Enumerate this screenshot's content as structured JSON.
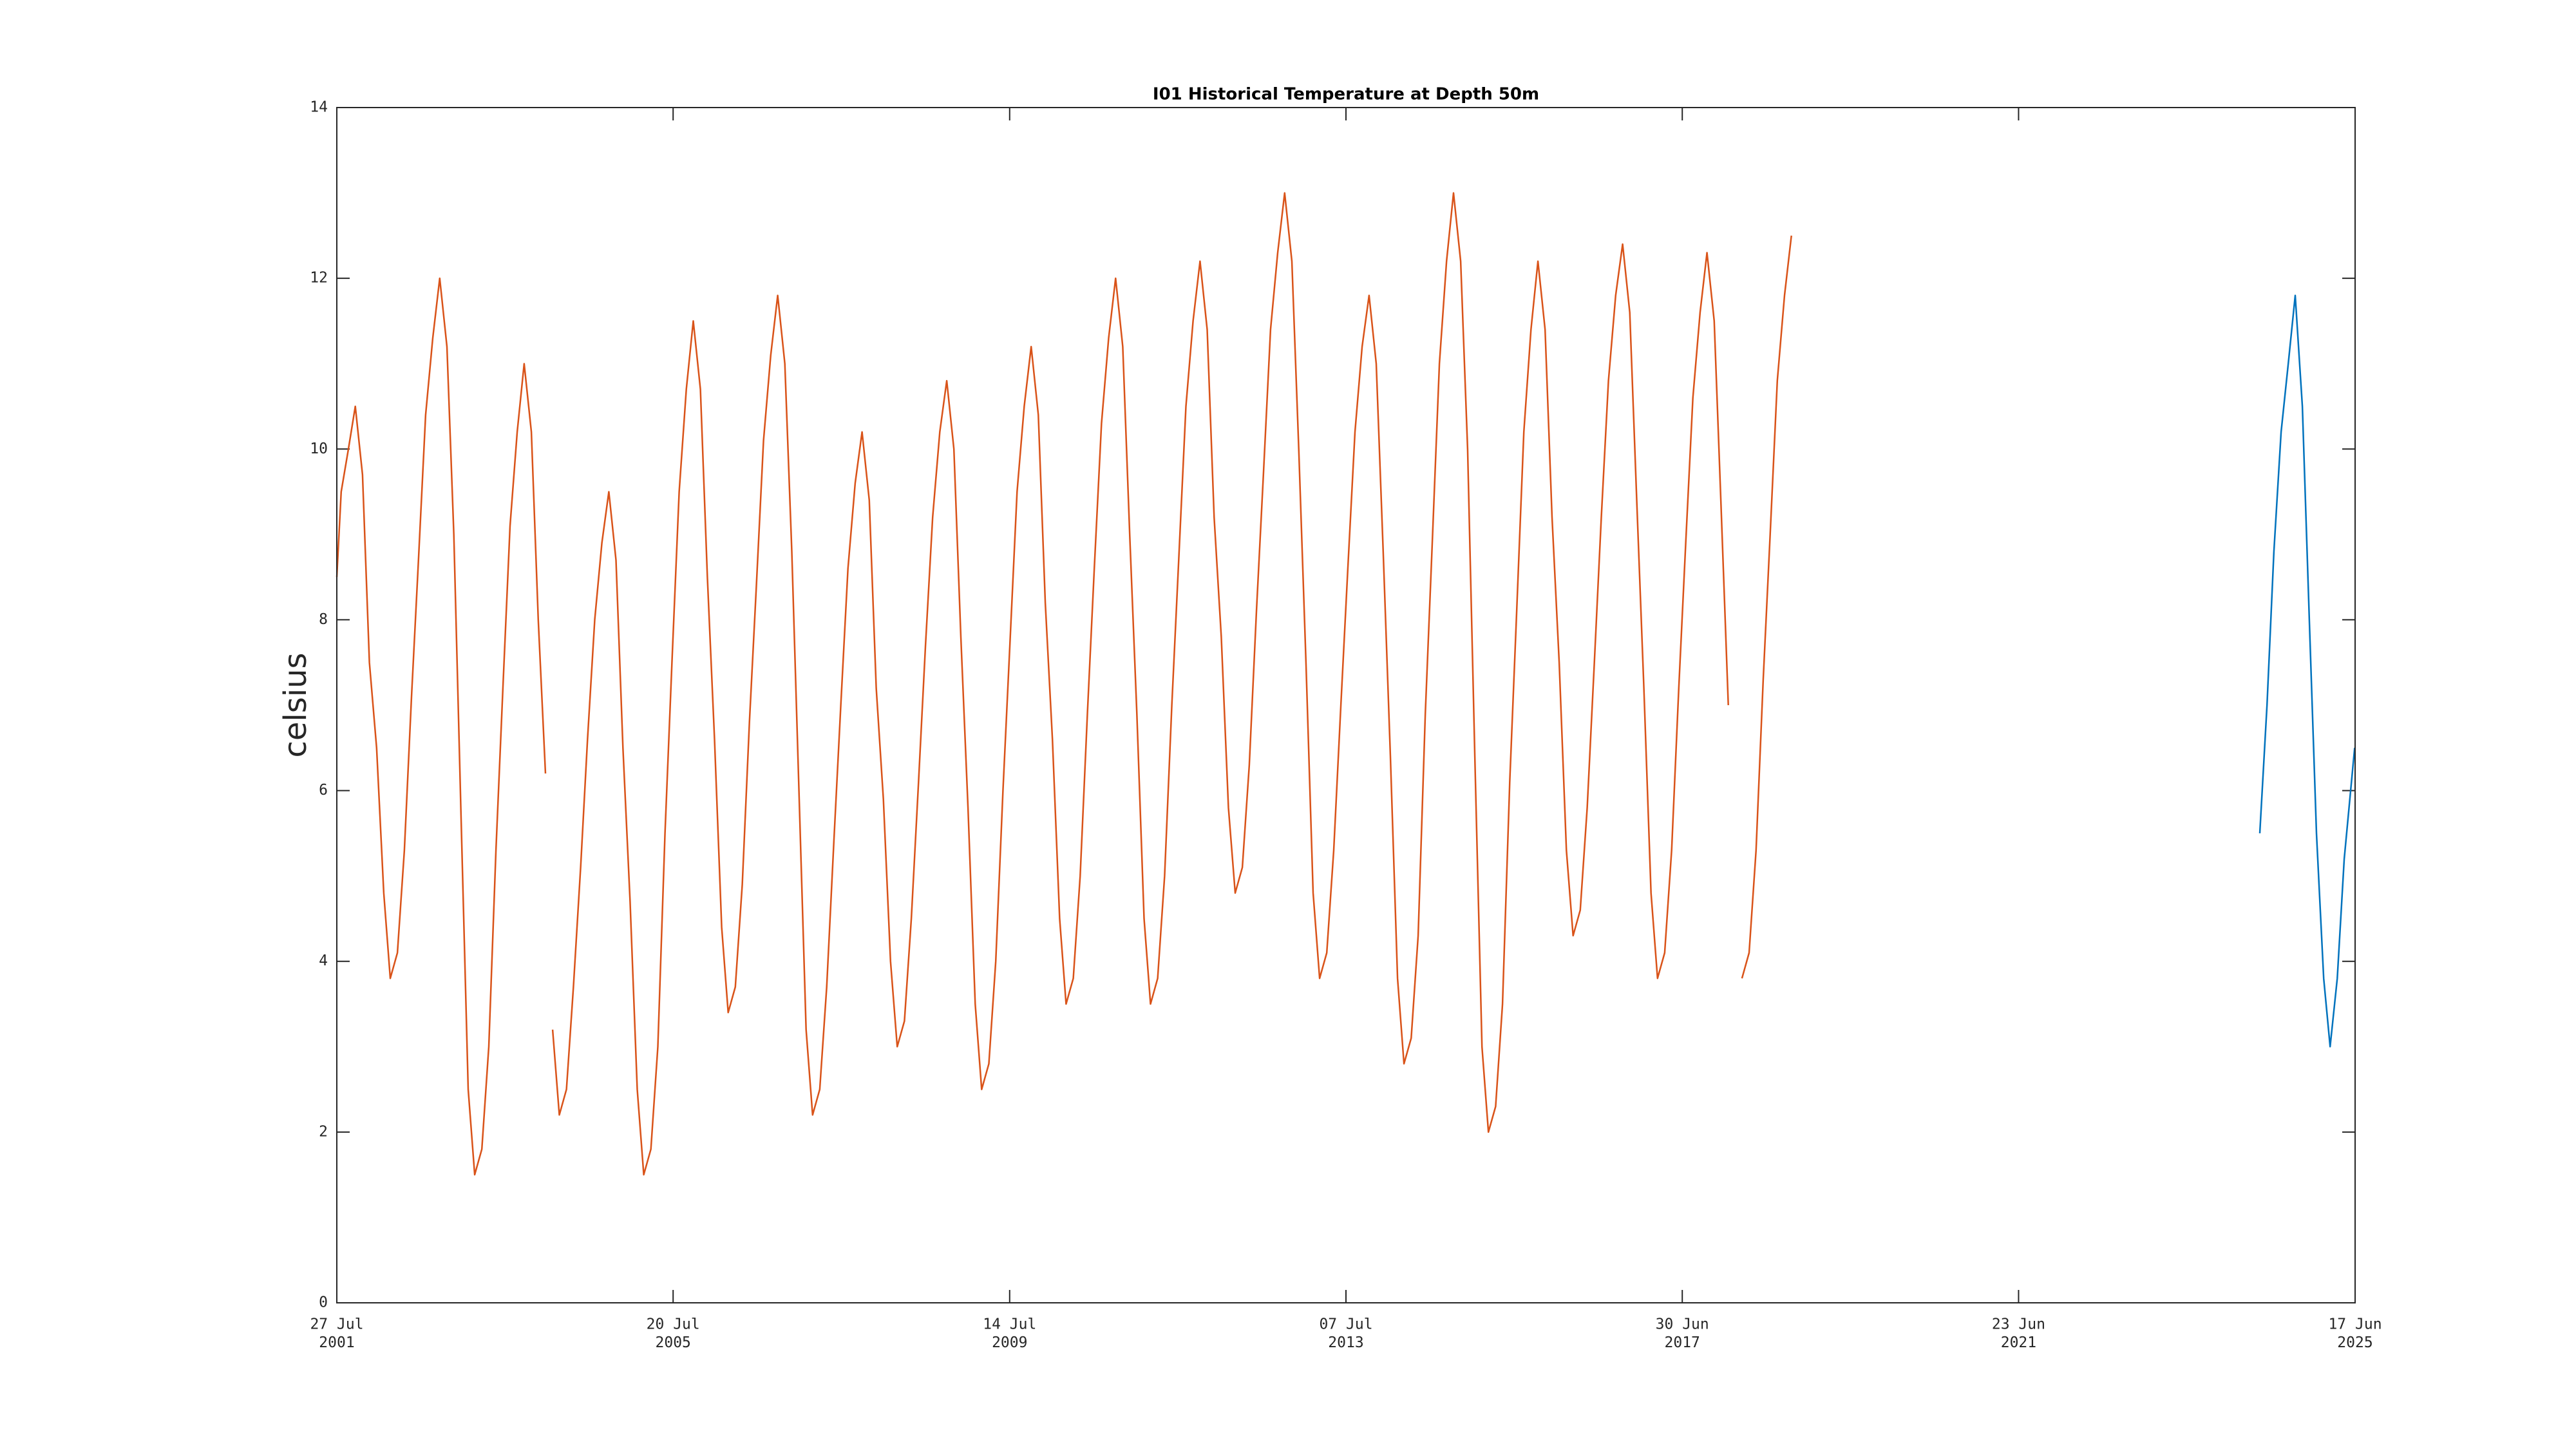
{
  "chart_data": {
    "type": "line",
    "title": "I01 Historical Temperature at Depth 50m",
    "y_label": "celsius",
    "xlim": [
      "2001-07-27",
      "2025-06-17"
    ],
    "xticks": [
      {
        "value": "2001-07-27",
        "label": "27 Jul\n2001"
      },
      {
        "value": "2005-07-20",
        "label": "20 Jul\n2005"
      },
      {
        "value": "2009-07-14",
        "label": "14 Jul\n2009"
      },
      {
        "value": "2013-07-07",
        "label": "07 Jul\n2013"
      },
      {
        "value": "2017-06-30",
        "label": "30 Jun\n2017"
      },
      {
        "value": "2021-06-23",
        "label": "23 Jun\n2021"
      },
      {
        "value": "2025-06-17",
        "label": "17 Jun\n2025"
      }
    ],
    "ylim": [
      0,
      14
    ],
    "yticks": [
      0,
      2,
      4,
      6,
      8,
      10,
      12,
      14
    ],
    "grid": false,
    "series": [
      {
        "color": "#d95319",
        "x": [
          "2001-07-27",
          "2001-08-15",
          "2001-09-15",
          "2001-10-15",
          "2001-11-15",
          "2001-12-15",
          "2002-01-15",
          "2002-02-15",
          "2002-03-15",
          "2002-04-15",
          "2002-05-15",
          "2002-06-15",
          "2002-07-15",
          "2002-08-15",
          "2002-09-15",
          "2002-10-15",
          "2002-11-15",
          "2002-12-15",
          "2003-01-15",
          "2003-02-15",
          "2003-03-15",
          "2003-04-15",
          "2003-05-15",
          "2003-06-15",
          "2003-07-15",
          "2003-08-15",
          "2003-09-15",
          "2003-10-15",
          "2003-11-15",
          "2003-12-15",
          "2004-01-15",
          "2004-02-01",
          "2004-02-15",
          "2004-03-15",
          "2004-04-15",
          "2004-05-15",
          "2004-06-15",
          "2004-07-15",
          "2004-08-15",
          "2004-09-15",
          "2004-10-15",
          "2004-11-15",
          "2004-12-15",
          "2005-01-15",
          "2005-02-15",
          "2005-03-15",
          "2005-04-15",
          "2005-05-15",
          "2005-06-15",
          "2005-07-15",
          "2005-08-15",
          "2005-09-15",
          "2005-10-15",
          "2005-11-15",
          "2005-12-15",
          "2006-01-15",
          "2006-02-15",
          "2006-03-15",
          "2006-04-15",
          "2006-05-15",
          "2006-06-15",
          "2006-07-15",
          "2006-08-15",
          "2006-09-15",
          "2006-10-15",
          "2006-11-15",
          "2006-12-15",
          "2007-01-15",
          "2007-02-15",
          "2007-03-15",
          "2007-04-15",
          "2007-05-15",
          "2007-06-15",
          "2007-07-15",
          "2007-08-15",
          "2007-09-15",
          "2007-10-15",
          "2007-11-15",
          "2007-12-15",
          "2008-01-15",
          "2008-02-15",
          "2008-03-15",
          "2008-04-15",
          "2008-05-15",
          "2008-06-15",
          "2008-07-15",
          "2008-08-15",
          "2008-09-15",
          "2008-10-15",
          "2008-11-15",
          "2008-12-15",
          "2009-01-15",
          "2009-02-15",
          "2009-03-15",
          "2009-04-15",
          "2009-05-15",
          "2009-06-15",
          "2009-07-15",
          "2009-08-15",
          "2009-09-15",
          "2009-10-15",
          "2009-11-15",
          "2009-12-15",
          "2010-01-15",
          "2010-02-15",
          "2010-03-15",
          "2010-04-15",
          "2010-05-15",
          "2010-06-15",
          "2010-07-15",
          "2010-08-15",
          "2010-09-15",
          "2010-10-15",
          "2010-11-15",
          "2010-12-15",
          "2011-01-15",
          "2011-02-15",
          "2011-03-15",
          "2011-04-15",
          "2011-05-15",
          "2011-06-15",
          "2011-07-15",
          "2011-08-15",
          "2011-09-15",
          "2011-10-15",
          "2011-11-15",
          "2011-12-15",
          "2012-01-15",
          "2012-02-15",
          "2012-03-15",
          "2012-04-15",
          "2012-05-15",
          "2012-06-15",
          "2012-07-15",
          "2012-08-15",
          "2012-09-15",
          "2012-10-15",
          "2012-11-15",
          "2012-12-15",
          "2013-01-15",
          "2013-02-15",
          "2013-03-15",
          "2013-04-15",
          "2013-05-15",
          "2013-06-15",
          "2013-07-15",
          "2013-08-15",
          "2013-09-15",
          "2013-10-15",
          "2013-11-15",
          "2013-12-15",
          "2014-01-15",
          "2014-02-15",
          "2014-03-15",
          "2014-04-15",
          "2014-05-15",
          "2014-06-15",
          "2014-07-15",
          "2014-08-15",
          "2014-09-15",
          "2014-10-15",
          "2014-11-15",
          "2014-12-15",
          "2015-01-15",
          "2015-02-15",
          "2015-03-15",
          "2015-04-15",
          "2015-05-15",
          "2015-06-15",
          "2015-07-15",
          "2015-08-15",
          "2015-09-15",
          "2015-10-15",
          "2015-11-15",
          "2015-12-15",
          "2016-01-15",
          "2016-02-15",
          "2016-03-15",
          "2016-04-15",
          "2016-05-15",
          "2016-06-15",
          "2016-07-15",
          "2016-08-15",
          "2016-09-15",
          "2016-10-15",
          "2016-11-15",
          "2016-12-15",
          "2017-01-15",
          "2017-02-15",
          "2017-03-15",
          "2017-04-15",
          "2017-05-15",
          "2017-06-15",
          "2017-07-15",
          "2017-08-15",
          "2017-09-15",
          "2017-10-15",
          "2017-11-15",
          "2017-12-15",
          "2018-01-15",
          "2018-02-15",
          "2018-03-15",
          "2018-04-15",
          "2018-05-15",
          "2018-06-15",
          "2018-07-15",
          "2018-08-15",
          "2018-09-15",
          "2018-10-15"
        ],
        "values": [
          8.5,
          9.5,
          10,
          10.5,
          9.7,
          7.5,
          6.5,
          4.8,
          3.8,
          4.1,
          5.3,
          7.1,
          8.7,
          10.4,
          11.3,
          12,
          11.2,
          9.0,
          5.7,
          2.5,
          1.5,
          1.8,
          3.0,
          5.3,
          7.2,
          9.1,
          10.2,
          11,
          10.2,
          8.0,
          6.2,
          null,
          3.2,
          2.2,
          2.5,
          3.7,
          5.1,
          6.6,
          8.0,
          8.9,
          9.5,
          8.7,
          6.5,
          4.7,
          2.5,
          1.5,
          1.8,
          3.0,
          5.5,
          7.5,
          9.5,
          10.7,
          11.5,
          10.7,
          8.5,
          6.6,
          4.4,
          3.4,
          3.7,
          4.9,
          6.8,
          8.4,
          10.1,
          11.1,
          11.8,
          11.0,
          8.8,
          6.0,
          3.2,
          2.2,
          2.5,
          3.7,
          5.4,
          7.0,
          8.6,
          9.6,
          10.2,
          9.4,
          7.2,
          5.9,
          4.0,
          3.0,
          3.3,
          4.5,
          6.1,
          7.7,
          9.2,
          10.2,
          10.8,
          10.0,
          7.8,
          5.8,
          3.5,
          2.5,
          2.8,
          4.0,
          6.0,
          7.7,
          9.5,
          10.5,
          11.2,
          10.4,
          8.2,
          6.6,
          4.5,
          3.5,
          3.8,
          5.0,
          6.9,
          8.6,
          10.3,
          11.3,
          12.0,
          11.2,
          9.0,
          6.9,
          4.5,
          3.5,
          3.8,
          5.0,
          7.0,
          8.7,
          10.5,
          11.5,
          12.2,
          11.4,
          9.2,
          7.8,
          5.8,
          4.8,
          5.1,
          6.3,
          8.1,
          9.7,
          11.4,
          12.3,
          13.0,
          12.2,
          10.0,
          7.5,
          4.8,
          3.8,
          4.1,
          5.3,
          7.0,
          8.6,
          10.2,
          11.2,
          11.8,
          11.0,
          8.8,
          6.4,
          3.8,
          2.8,
          3.1,
          4.3,
          6.9,
          8.9,
          11.0,
          12.2,
          13.0,
          12.2,
          10.0,
          6.4,
          3.0,
          2.0,
          2.3,
          3.5,
          6.1,
          8.1,
          10.2,
          11.4,
          12.2,
          11.4,
          9.2,
          7.5,
          5.3,
          4.3,
          4.6,
          5.8,
          7.5,
          9.2,
          10.8,
          11.8,
          12.4,
          11.6,
          9.4,
          7.2,
          4.8,
          3.8,
          4.1,
          5.3,
          7.2,
          8.9,
          10.6,
          11.6,
          12.3,
          11.5,
          9.3,
          7.0,
          null,
          3.8,
          4.1,
          5.3,
          7.3,
          9.0,
          10.8,
          11.8,
          12.5
        ]
      },
      {
        "color": "#0072bd",
        "x": [
          "2024-05-01",
          "2024-06-01",
          "2024-07-01",
          "2024-08-01",
          "2024-09-01",
          "2024-10-01",
          "2024-11-01",
          "2024-12-01",
          "2025-01-01",
          "2025-02-01",
          "2025-03-01",
          "2025-04-01",
          "2025-05-01",
          "2025-06-15"
        ],
        "values": [
          5.5,
          7.0,
          8.8,
          10.2,
          11.0,
          11.8,
          10.5,
          8.0,
          5.5,
          3.8,
          3.0,
          3.8,
          5.2,
          6.5
        ]
      }
    ]
  }
}
